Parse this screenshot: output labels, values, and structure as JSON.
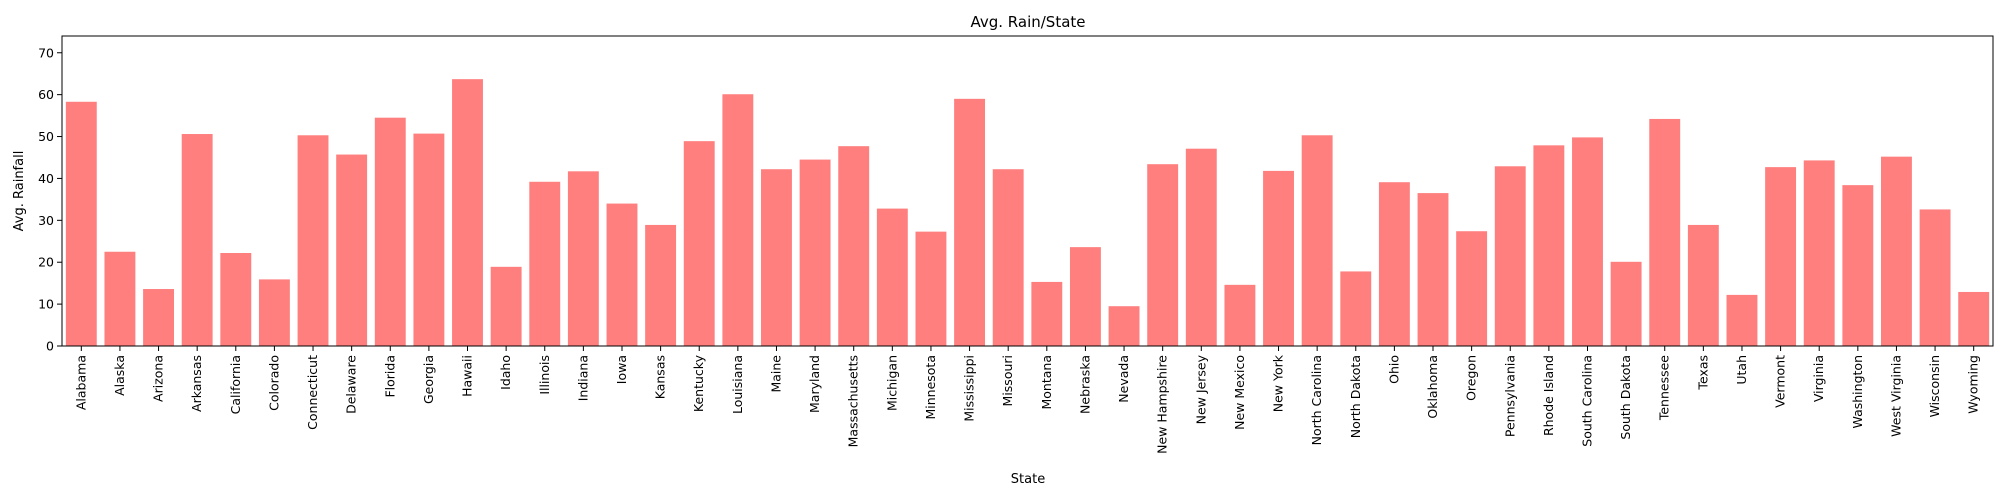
{
  "chart_data": {
    "type": "bar",
    "title": "Avg. Rain/State",
    "xlabel": "State",
    "ylabel": "Avg. Rainfall",
    "ylim": [
      0,
      74
    ],
    "yticks": [
      0,
      10,
      20,
      30,
      40,
      50,
      60,
      70
    ],
    "grid": false,
    "bar_color": "#ff7f7f",
    "categories": [
      "Alabama",
      "Alaska",
      "Arizona",
      "Arkansas",
      "California",
      "Colorado",
      "Connecticut",
      "Delaware",
      "Florida",
      "Georgia",
      "Hawaii",
      "Idaho",
      "Illinois",
      "Indiana",
      "Iowa",
      "Kansas",
      "Kentucky",
      "Louisiana",
      "Maine",
      "Maryland",
      "Massachusetts",
      "Michigan",
      "Minnesota",
      "Mississippi",
      "Missouri",
      "Montana",
      "Nebraska",
      "Nevada",
      "New Hampshire",
      "New Jersey",
      "New Mexico",
      "New York",
      "North Carolina",
      "North Dakota",
      "Ohio",
      "Oklahoma",
      "Oregon",
      "Pennsylvania",
      "Rhode Island",
      "South Carolina",
      "South Dakota",
      "Tennessee",
      "Texas",
      "Utah",
      "Vermont",
      "Virginia",
      "Washington",
      "West Virginia",
      "Wisconsin",
      "Wyoming"
    ],
    "values": [
      58.3,
      22.5,
      13.6,
      50.6,
      22.2,
      15.9,
      50.3,
      45.7,
      54.5,
      50.7,
      63.7,
      18.9,
      39.2,
      41.7,
      34.0,
      28.9,
      48.9,
      60.1,
      42.2,
      44.5,
      47.7,
      32.8,
      27.3,
      59.0,
      42.2,
      15.3,
      23.6,
      9.5,
      43.4,
      47.1,
      14.6,
      41.8,
      50.3,
      17.8,
      39.1,
      36.5,
      27.4,
      42.9,
      47.9,
      49.8,
      20.1,
      54.2,
      28.9,
      12.2,
      42.7,
      44.3,
      38.4,
      45.2,
      32.6,
      12.9
    ]
  }
}
